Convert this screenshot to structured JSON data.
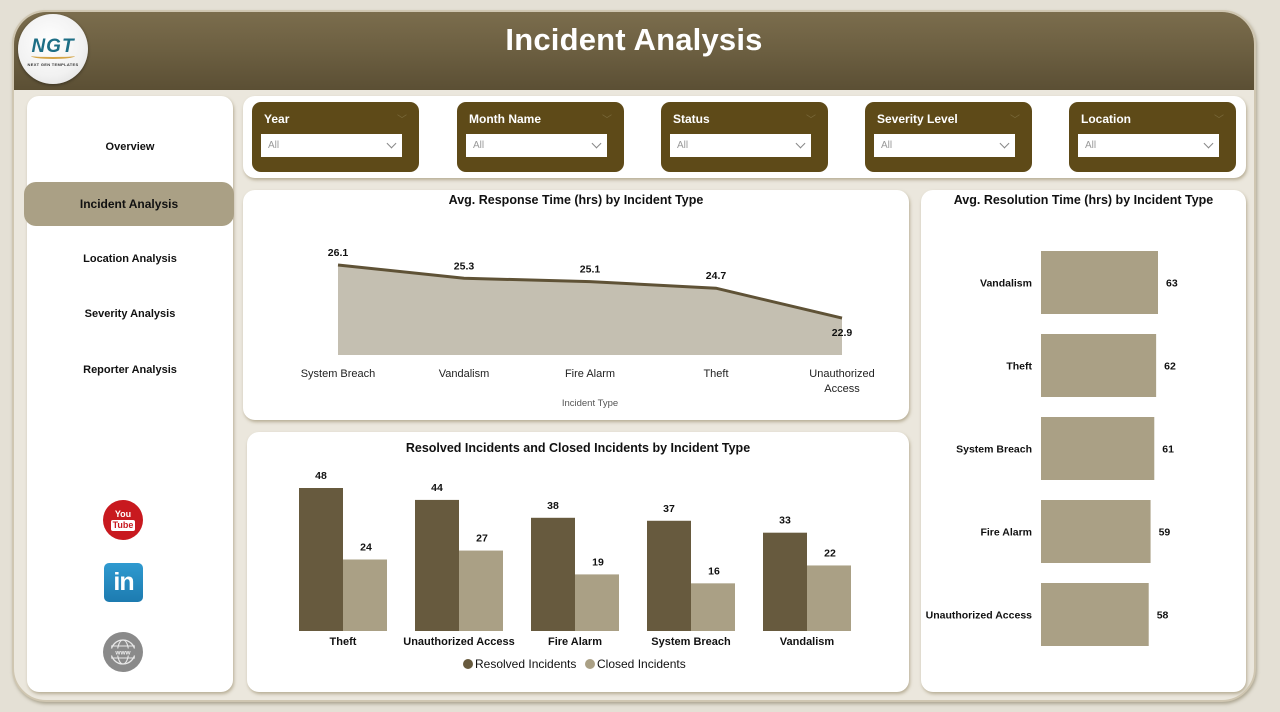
{
  "header": {
    "title": "Incident Analysis",
    "logo": {
      "mark": "NGT",
      "subtitle": "NEXT GEN TEMPLATES"
    }
  },
  "sidebar": {
    "items": [
      {
        "label": "Overview",
        "active": false
      },
      {
        "label": "Incident Analysis",
        "active": true
      },
      {
        "label": "Location Analysis",
        "active": false
      },
      {
        "label": "Severity Analysis",
        "active": false
      },
      {
        "label": "Reporter Analysis",
        "active": false
      }
    ],
    "social": [
      {
        "icon": "youtube-icon",
        "top": "You",
        "bottom": "Tube"
      },
      {
        "icon": "linkedin-icon",
        "text": "in"
      },
      {
        "icon": "globe-www-icon",
        "text": "www"
      }
    ]
  },
  "filters": [
    {
      "label": "Year",
      "value": "All"
    },
    {
      "label": "Month Name",
      "value": "All"
    },
    {
      "label": "Status",
      "value": "All"
    },
    {
      "label": "Severity Level",
      "value": "All"
    },
    {
      "label": "Location",
      "value": "All"
    }
  ],
  "colors": {
    "header": "#6c5f41",
    "slicer": "#5e4a18",
    "dark_bar": "#675a3e",
    "light_bar": "#aaa085",
    "area_fill": "#c4bfb1",
    "line": "#5f5236",
    "nav_active": "#aaa085"
  },
  "chart_data": [
    {
      "type": "area",
      "title": "Avg. Response Time (hrs) by Incident Type",
      "xlabel": "Incident Type",
      "ylabel": "",
      "categories": [
        "System Breach",
        "Vandalism",
        "Fire Alarm",
        "Theft",
        "Unauthorized Access"
      ],
      "values": [
        26.1,
        25.3,
        25.1,
        24.7,
        22.9
      ],
      "labels": [
        "26.1",
        "25.3",
        "25.1",
        "24.7",
        "22.9"
      ],
      "grid": false,
      "legend": "none"
    },
    {
      "type": "bar",
      "title": "Resolved Incidents and Closed Incidents by Incident Type",
      "categories": [
        "Theft",
        "Unauthorized Access",
        "Fire Alarm",
        "System Breach",
        "Vandalism"
      ],
      "series": [
        {
          "name": "Resolved Incidents",
          "values": [
            48,
            44,
            38,
            37,
            33
          ]
        },
        {
          "name": "Closed Incidents",
          "values": [
            24,
            27,
            19,
            16,
            22
          ]
        }
      ],
      "legend_position": "bottom",
      "grid": false
    },
    {
      "type": "bar",
      "orientation": "horizontal",
      "title": "Avg. Resolution Time (hrs) by Incident Type",
      "categories": [
        "Vandalism",
        "Theft",
        "System Breach",
        "Fire Alarm",
        "Unauthorized Access"
      ],
      "values": [
        63,
        62,
        61,
        59,
        58
      ],
      "grid": false,
      "legend": "none"
    }
  ]
}
